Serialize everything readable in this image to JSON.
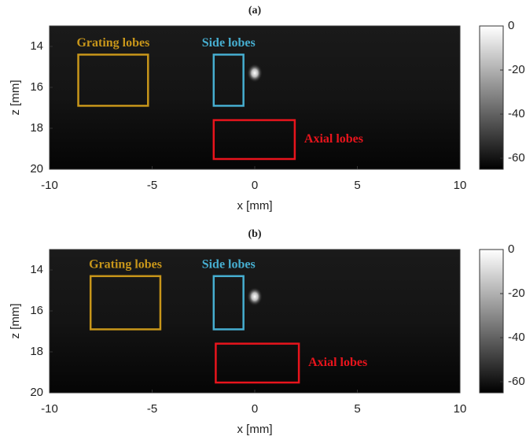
{
  "chart_data": [
    {
      "type": "image",
      "title": "(a)",
      "x_label": "x [mm]",
      "y_label": "z [mm]",
      "xlim": [
        -10,
        10
      ],
      "ylim": [
        13,
        20
      ],
      "xticks": [
        -10,
        -5,
        0,
        5,
        10
      ],
      "yticks": [
        14,
        16,
        18,
        20
      ],
      "colorbar_lim": [
        -65,
        0
      ],
      "colorbar_ticks": [
        0,
        -20,
        -40,
        -60
      ],
      "annotations": [
        {
          "text": "Grating lobes",
          "color": "#c8961a",
          "x": [
            -8.6,
            -5.2
          ],
          "z": [
            14.4,
            16.9
          ]
        },
        {
          "text": "Side lobes",
          "color": "#46aed0",
          "x": [
            -2.0,
            -0.55
          ],
          "z": [
            14.4,
            16.9
          ]
        },
        {
          "text": "Axial lobes",
          "color": "#e8141c",
          "x": [
            -2.0,
            1.95
          ],
          "z": [
            17.6,
            19.5
          ]
        }
      ]
    },
    {
      "type": "image",
      "title": "(b)",
      "x_label": "x [mm]",
      "y_label": "z [mm]",
      "xlim": [
        -10,
        10
      ],
      "ylim": [
        13,
        20
      ],
      "xticks": [
        -10,
        -5,
        0,
        5,
        10
      ],
      "yticks": [
        14,
        16,
        18,
        20
      ],
      "colorbar_lim": [
        -65,
        0
      ],
      "colorbar_ticks": [
        0,
        -20,
        -40,
        -60
      ],
      "annotations": [
        {
          "text": "Grating lobes",
          "color": "#c8961a",
          "x": [
            -8.0,
            -4.6
          ],
          "z": [
            14.3,
            16.9
          ]
        },
        {
          "text": "Side lobes",
          "color": "#46aed0",
          "x": [
            -2.0,
            -0.55
          ],
          "z": [
            14.3,
            16.9
          ]
        },
        {
          "text": "Axial lobes",
          "color": "#e8141c",
          "x": [
            -1.9,
            2.15
          ],
          "z": [
            17.6,
            19.5
          ]
        }
      ]
    }
  ]
}
